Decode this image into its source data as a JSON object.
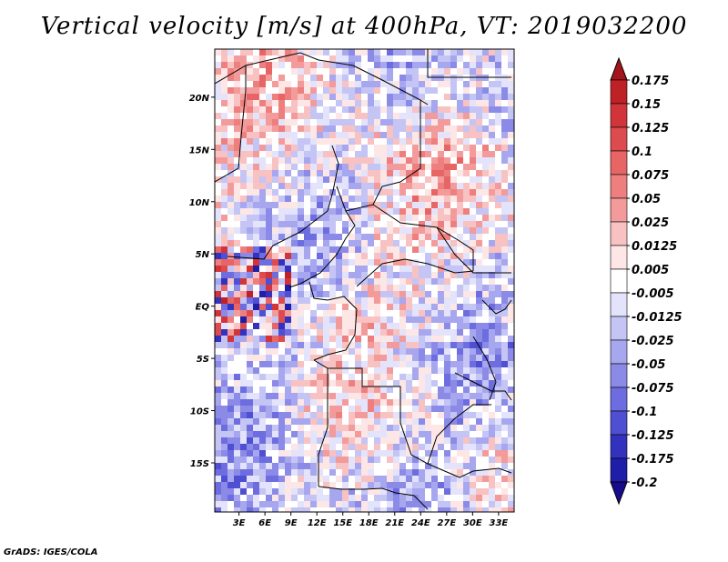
{
  "title": "Vertical velocity [m/s] at 400hPa, VT: 2019032200",
  "credit": "GrADS: IGES/COLA",
  "chart_data": {
    "type": "heatmap",
    "variable": "Vertical velocity",
    "units": "m/s",
    "level": "400hPa",
    "valid_time": "2019032200",
    "x_ticks": [
      "3E",
      "6E",
      "9E",
      "12E",
      "15E",
      "18E",
      "21E",
      "24E",
      "27E",
      "30E",
      "33E"
    ],
    "x_tick_values": [
      3,
      6,
      9,
      12,
      15,
      18,
      21,
      24,
      27,
      30,
      33
    ],
    "y_ticks": [
      "20N",
      "15N",
      "10N",
      "5N",
      "EQ",
      "5S",
      "10S",
      "15S"
    ],
    "y_tick_values": [
      20,
      15,
      10,
      5,
      0,
      -5,
      -10,
      -15
    ],
    "xlim": [
      0.2,
      34.8
    ],
    "ylim": [
      -19.7,
      24.6
    ],
    "colorbar": {
      "levels": [
        "0.175",
        "0.15",
        "0.125",
        "0.1",
        "0.075",
        "0.05",
        "0.025",
        "0.0125",
        "0.005",
        "-0.005",
        "-0.0125",
        "-0.025",
        "-0.05",
        "-0.075",
        "-0.1",
        "-0.125",
        "-0.175",
        "-0.2"
      ],
      "colors": [
        "#a5141a",
        "#be2126",
        "#d1353a",
        "#dd4b4e",
        "#e76565",
        "#ee7f7f",
        "#f39b9b",
        "#f8c2c2",
        "#fde6e6",
        "#ffffff",
        "#e3e3fb",
        "#c4c4f5",
        "#a7a7ef",
        "#8b8be7",
        "#6d6ddf",
        "#4f4fd3",
        "#3232bf",
        "#1e1ea8",
        "#180c8e"
      ]
    }
  }
}
